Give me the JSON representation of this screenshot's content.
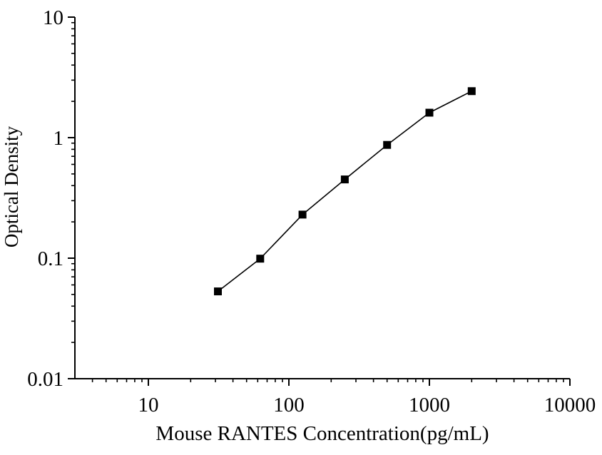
{
  "figure": {
    "background_color": "#ffffff",
    "ink_color": "#000000"
  },
  "chart_data": {
    "type": "line",
    "title": "",
    "xlabel": "Mouse RANTES Concentration(pg/mL)",
    "ylabel": "Optical Density",
    "x_scale": "log",
    "y_scale": "log",
    "xlim": [
      3,
      10000
    ],
    "ylim": [
      0.01,
      10
    ],
    "x_major_ticks": [
      10,
      100,
      1000,
      10000
    ],
    "x_tick_labels": [
      "10",
      "100",
      "1000",
      "10000"
    ],
    "y_major_ticks": [
      0.01,
      0.1,
      1,
      10
    ],
    "y_tick_labels": [
      "0.01",
      "0.1",
      "1",
      "10"
    ],
    "grid": false,
    "legend": null,
    "marker": "filled-square",
    "series": [
      {
        "x": [
          31.25,
          62.5,
          125,
          250,
          500,
          1000,
          2000
        ],
        "y": [
          0.053,
          0.099,
          0.23,
          0.45,
          0.87,
          1.61,
          2.43
        ]
      }
    ]
  }
}
